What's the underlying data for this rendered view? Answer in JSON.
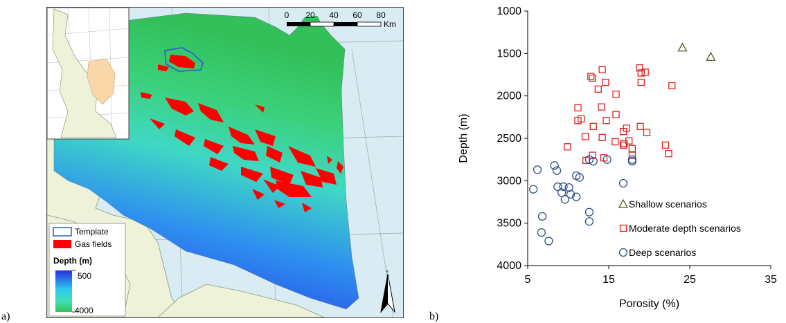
{
  "panel_labels": {
    "a": "a)",
    "b": "b)"
  },
  "map": {
    "scale_bar": {
      "ticks": [
        "0",
        "20",
        "40",
        "60",
        "80"
      ],
      "unit": "Km"
    },
    "legend": {
      "template": "Template",
      "gas_fields": "Gas fields",
      "depth_title": "Depth (m)",
      "depth_min": "500",
      "depth_max": "4000"
    },
    "north": "N",
    "colors": {
      "land": "#eef2d8",
      "sea": "#d9ecf3",
      "gas": "#ff0000",
      "template": "#2060d0",
      "inset_region": "#f9d7a8"
    }
  },
  "chart_data": {
    "type": "scatter",
    "xlabel": "Porosity (%)",
    "ylabel": "Depth (m)",
    "xlim": [
      5,
      35
    ],
    "ylim": [
      4000,
      1000
    ],
    "y_inverted": true,
    "xticks": [
      "5",
      "15",
      "25",
      "35"
    ],
    "yticks": [
      "1000",
      "1500",
      "2000",
      "2500",
      "3000",
      "3500",
      "4000"
    ],
    "legend_position": "bottom-right",
    "series": [
      {
        "name": "Shallow scenarios",
        "marker": "triangle",
        "color": "#4a5a20",
        "points": [
          [
            24.1,
            1430
          ],
          [
            27.6,
            1540
          ]
        ]
      },
      {
        "name": "Moderate depth scenarios",
        "marker": "square",
        "color": "#e02020",
        "points": [
          [
            14.2,
            1690
          ],
          [
            18.8,
            1670
          ],
          [
            19.5,
            1720
          ],
          [
            19.0,
            1730
          ],
          [
            12.8,
            1770
          ],
          [
            13.0,
            1790
          ],
          [
            14.6,
            1840
          ],
          [
            19.0,
            1840
          ],
          [
            22.8,
            1880
          ],
          [
            13.7,
            1920
          ],
          [
            15.9,
            1980
          ],
          [
            14.1,
            2130
          ],
          [
            11.2,
            2140
          ],
          [
            15.9,
            2220
          ],
          [
            11.6,
            2270
          ],
          [
            11.2,
            2290
          ],
          [
            14.7,
            2290
          ],
          [
            18.9,
            2360
          ],
          [
            13.1,
            2360
          ],
          [
            17.2,
            2380
          ],
          [
            16.8,
            2420
          ],
          [
            19.7,
            2430
          ],
          [
            12.1,
            2480
          ],
          [
            14.2,
            2490
          ],
          [
            15.8,
            2540
          ],
          [
            17.5,
            2530
          ],
          [
            16.9,
            2560
          ],
          [
            16.8,
            2580
          ],
          [
            22.0,
            2580
          ],
          [
            9.9,
            2600
          ],
          [
            17.9,
            2620
          ],
          [
            22.4,
            2680
          ],
          [
            13.0,
            2700
          ],
          [
            17.9,
            2700
          ],
          [
            12.2,
            2760
          ],
          [
            14.4,
            2730
          ]
        ]
      },
      {
        "name": "Deep scenarios",
        "marker": "circle",
        "color": "#2c4f8a",
        "points": [
          [
            12.6,
            2750
          ],
          [
            13.1,
            2770
          ],
          [
            14.8,
            2750
          ],
          [
            17.9,
            2750
          ],
          [
            17.9,
            2770
          ],
          [
            8.3,
            2820
          ],
          [
            6.2,
            2870
          ],
          [
            8.6,
            2880
          ],
          [
            11.0,
            2940
          ],
          [
            11.4,
            2960
          ],
          [
            5.7,
            3100
          ],
          [
            8.7,
            3070
          ],
          [
            9.4,
            3070
          ],
          [
            10.1,
            3080
          ],
          [
            9.2,
            3140
          ],
          [
            10.3,
            3160
          ],
          [
            11.0,
            3190
          ],
          [
            9.6,
            3220
          ],
          [
            16.8,
            3030
          ],
          [
            12.6,
            3370
          ],
          [
            6.8,
            3420
          ],
          [
            12.6,
            3480
          ],
          [
            6.7,
            3610
          ],
          [
            7.6,
            3710
          ]
        ]
      }
    ]
  }
}
